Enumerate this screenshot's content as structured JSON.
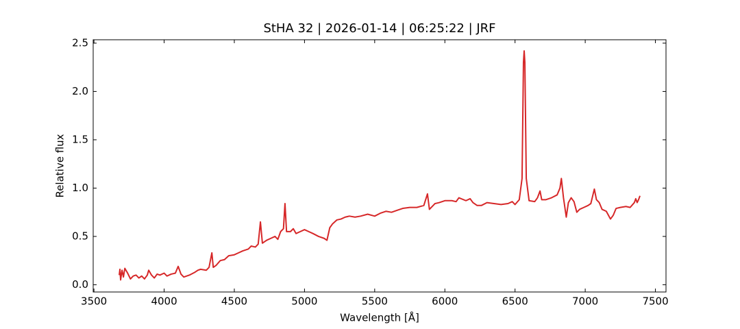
{
  "chart_data": {
    "type": "line",
    "title": "StHA 32 | 2026-01-14 | 06:25:22 | JRF",
    "xlabel": "Wavelength [Å]",
    "ylabel": "Relative flux",
    "x": [
      3680,
      3685,
      3690,
      3700,
      3710,
      3720,
      3740,
      3760,
      3780,
      3800,
      3820,
      3840,
      3860,
      3880,
      3890,
      3910,
      3930,
      3950,
      3970,
      4000,
      4020,
      4050,
      4080,
      4100,
      4120,
      4140,
      4180,
      4220,
      4240,
      4260,
      4300,
      4320,
      4340,
      4350,
      4370,
      4400,
      4430,
      4460,
      4500,
      4530,
      4560,
      4600,
      4620,
      4650,
      4670,
      4686,
      4700,
      4730,
      4760,
      4790,
      4810,
      4830,
      4850,
      4861,
      4872,
      4900,
      4920,
      4940,
      4970,
      5000,
      5030,
      5060,
      5100,
      5140,
      5160,
      5180,
      5200,
      5230,
      5260,
      5290,
      5320,
      5360,
      5400,
      5450,
      5500,
      5540,
      5580,
      5620,
      5660,
      5700,
      5750,
      5800,
      5850,
      5876,
      5890,
      5930,
      5960,
      6000,
      6050,
      6080,
      6100,
      6150,
      6180,
      6200,
      6230,
      6260,
      6300,
      6350,
      6400,
      6450,
      6480,
      6500,
      6530,
      6550,
      6560,
      6565,
      6570,
      6580,
      6600,
      6640,
      6660,
      6678,
      6690,
      6720,
      6760,
      6800,
      6820,
      6830,
      6845,
      6865,
      6880,
      6900,
      6920,
      6940,
      6960,
      6990,
      7020,
      7040,
      7065,
      7080,
      7100,
      7120,
      7150,
      7180,
      7200,
      7220,
      7250,
      7290,
      7320,
      7350,
      7360,
      7370,
      7380,
      7390
    ],
    "series": [
      {
        "color": "#d62728",
        "values": [
          0.1,
          0.16,
          0.05,
          0.15,
          0.08,
          0.17,
          0.12,
          0.06,
          0.09,
          0.1,
          0.07,
          0.09,
          0.06,
          0.1,
          0.15,
          0.1,
          0.07,
          0.11,
          0.1,
          0.12,
          0.09,
          0.11,
          0.12,
          0.19,
          0.11,
          0.08,
          0.1,
          0.13,
          0.15,
          0.16,
          0.15,
          0.18,
          0.33,
          0.18,
          0.2,
          0.25,
          0.26,
          0.3,
          0.31,
          0.33,
          0.35,
          0.37,
          0.4,
          0.39,
          0.42,
          0.65,
          0.43,
          0.46,
          0.48,
          0.5,
          0.47,
          0.55,
          0.58,
          0.84,
          0.55,
          0.55,
          0.58,
          0.53,
          0.55,
          0.57,
          0.55,
          0.53,
          0.5,
          0.48,
          0.46,
          0.59,
          0.63,
          0.67,
          0.68,
          0.7,
          0.71,
          0.7,
          0.71,
          0.73,
          0.71,
          0.74,
          0.76,
          0.75,
          0.77,
          0.79,
          0.8,
          0.8,
          0.82,
          0.94,
          0.78,
          0.84,
          0.85,
          0.87,
          0.87,
          0.86,
          0.9,
          0.87,
          0.89,
          0.85,
          0.82,
          0.82,
          0.85,
          0.84,
          0.83,
          0.84,
          0.86,
          0.83,
          0.88,
          1.1,
          2.3,
          2.42,
          2.3,
          1.1,
          0.87,
          0.86,
          0.9,
          0.97,
          0.88,
          0.88,
          0.9,
          0.93,
          1.0,
          1.1,
          0.9,
          0.7,
          0.85,
          0.9,
          0.86,
          0.75,
          0.78,
          0.8,
          0.82,
          0.84,
          0.99,
          0.88,
          0.85,
          0.78,
          0.76,
          0.68,
          0.72,
          0.79,
          0.8,
          0.81,
          0.8,
          0.85,
          0.89,
          0.85,
          0.88,
          0.92
        ]
      }
    ],
    "xlim": [
      3494.5,
      7575.5
    ],
    "xticks": [
      3500,
      4000,
      4500,
      5000,
      5500,
      6000,
      6500,
      7000,
      7500
    ],
    "ylim": [
      -0.075,
      2.535
    ],
    "yticks": [
      {
        "value": 0,
        "label": "0.0"
      },
      0.5,
      {
        "value": 1,
        "label": "1.0"
      },
      1.5,
      {
        "value": 2,
        "label": "2.0"
      },
      2.5
    ]
  }
}
